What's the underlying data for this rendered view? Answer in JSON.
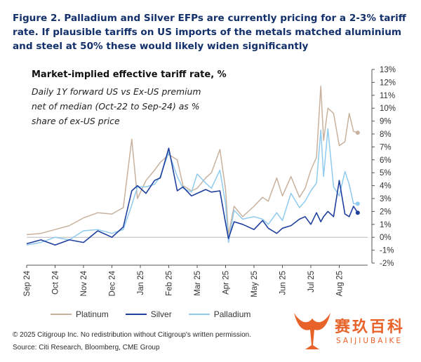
{
  "figure": {
    "title": "Figure 2. Palladium and Silver EFPs are currently pricing for a 2-3% tariff rate. If plausible tariffs on US imports of the metals matched aluminium and steel at 50% these would likely widen significantly"
  },
  "footer": {
    "copyright": "© 2025 Citigroup Inc. No redistribution without Citigroup's written permission.",
    "source": "Source: Citi Research, Bloomberg, CME Group"
  },
  "watermark": {
    "cn": "赛玖百科",
    "en": "SAIJIUBAIKE"
  },
  "colors": {
    "platinum": "#c8b29e",
    "silver": "#1f3f9e",
    "palladium": "#8fcbee",
    "title": "#13306a",
    "logo": "#e8632a"
  },
  "chart_data": {
    "type": "line",
    "title": "Market-implied effective tariff rate, %",
    "subtitle": "Daily 1Y forward US vs Ex-US premium net of median (Oct-22 to Sep-24) as % share of ex-US price",
    "ylim": [
      -2,
      13
    ],
    "y_ticks": [
      "-2%",
      "-1%",
      "0%",
      "1%",
      "2%",
      "3%",
      "4%",
      "5%",
      "6%",
      "7%",
      "8%",
      "9%",
      "10%",
      "11%",
      "12%",
      "13%"
    ],
    "x_ticks": [
      "Sep 24",
      "Oct 24",
      "Nov 24",
      "Dec 24",
      "Jan 25",
      "Feb 25",
      "Mar 25",
      "Apr 25",
      "May 25",
      "Jun 25",
      "Jul 25",
      "Aug 25"
    ],
    "grid": false,
    "legend_position": "bottom",
    "series": [
      {
        "name": "Platinum",
        "points": [
          [
            0,
            0.2
          ],
          [
            0.5,
            0.3
          ],
          [
            1,
            0.6
          ],
          [
            1.5,
            0.9
          ],
          [
            2,
            1.5
          ],
          [
            2.5,
            1.9
          ],
          [
            3,
            1.8
          ],
          [
            3.4,
            2.3
          ],
          [
            3.7,
            7.6
          ],
          [
            3.9,
            3.0
          ],
          [
            4.2,
            4.4
          ],
          [
            4.5,
            5.2
          ],
          [
            4.7,
            5.8
          ],
          [
            5,
            6.4
          ],
          [
            5.3,
            6.0
          ],
          [
            5.5,
            4.0
          ],
          [
            5.8,
            3.6
          ],
          [
            6,
            3.8
          ],
          [
            6.3,
            4.6
          ],
          [
            6.5,
            5.0
          ],
          [
            6.8,
            6.8
          ],
          [
            7,
            3.7
          ],
          [
            7.1,
            0.2
          ],
          [
            7.3,
            2.4
          ],
          [
            7.6,
            1.6
          ],
          [
            8,
            2.4
          ],
          [
            8.3,
            3.1
          ],
          [
            8.5,
            2.8
          ],
          [
            8.8,
            4.6
          ],
          [
            9,
            3.2
          ],
          [
            9.3,
            4.7
          ],
          [
            9.6,
            3.1
          ],
          [
            9.8,
            3.8
          ],
          [
            10,
            5.2
          ],
          [
            10.2,
            6.2
          ],
          [
            10.35,
            11.7
          ],
          [
            10.45,
            7.5
          ],
          [
            10.6,
            10.0
          ],
          [
            10.8,
            9.6
          ],
          [
            11,
            7.1
          ],
          [
            11.2,
            7.4
          ],
          [
            11.35,
            9.6
          ],
          [
            11.5,
            8.2
          ],
          [
            11.65,
            8.1
          ]
        ]
      },
      {
        "name": "Silver",
        "points": [
          [
            0,
            -0.5
          ],
          [
            0.5,
            -0.2
          ],
          [
            1,
            -0.6
          ],
          [
            1.5,
            -0.2
          ],
          [
            2,
            -0.4
          ],
          [
            2.5,
            0.5
          ],
          [
            3,
            0.0
          ],
          [
            3.4,
            0.8
          ],
          [
            3.7,
            3.6
          ],
          [
            3.9,
            4.0
          ],
          [
            4.2,
            3.4
          ],
          [
            4.5,
            4.4
          ],
          [
            4.7,
            4.6
          ],
          [
            5,
            6.9
          ],
          [
            5.3,
            3.6
          ],
          [
            5.5,
            3.9
          ],
          [
            5.8,
            3.2
          ],
          [
            6,
            3.4
          ],
          [
            6.3,
            3.7
          ],
          [
            6.5,
            3.5
          ],
          [
            6.8,
            3.6
          ],
          [
            7,
            1.1
          ],
          [
            7.1,
            -0.1
          ],
          [
            7.3,
            1.2
          ],
          [
            7.6,
            1.0
          ],
          [
            8,
            0.6
          ],
          [
            8.3,
            1.3
          ],
          [
            8.5,
            0.7
          ],
          [
            8.8,
            0.3
          ],
          [
            9,
            0.7
          ],
          [
            9.3,
            0.9
          ],
          [
            9.6,
            1.4
          ],
          [
            9.8,
            1.6
          ],
          [
            10,
            1.0
          ],
          [
            10.2,
            1.9
          ],
          [
            10.35,
            1.2
          ],
          [
            10.45,
            1.6
          ],
          [
            10.6,
            2.0
          ],
          [
            10.8,
            1.6
          ],
          [
            11,
            4.4
          ],
          [
            11.2,
            1.8
          ],
          [
            11.35,
            1.6
          ],
          [
            11.5,
            2.4
          ],
          [
            11.65,
            1.9
          ]
        ]
      },
      {
        "name": "Palladium",
        "points": [
          [
            0,
            -0.6
          ],
          [
            0.5,
            -0.4
          ],
          [
            1,
            0.0
          ],
          [
            1.5,
            -0.2
          ],
          [
            2,
            0.5
          ],
          [
            2.5,
            0.6
          ],
          [
            3,
            0.3
          ],
          [
            3.4,
            0.6
          ],
          [
            3.7,
            2.5
          ],
          [
            3.9,
            3.9
          ],
          [
            4.2,
            3.9
          ],
          [
            4.5,
            4.1
          ],
          [
            4.7,
            4.7
          ],
          [
            5,
            6.6
          ],
          [
            5.3,
            4.7
          ],
          [
            5.5,
            3.8
          ],
          [
            5.8,
            3.5
          ],
          [
            6,
            4.9
          ],
          [
            6.3,
            4.2
          ],
          [
            6.5,
            3.8
          ],
          [
            6.8,
            5.2
          ],
          [
            7,
            2.6
          ],
          [
            7.1,
            -0.4
          ],
          [
            7.3,
            2.1
          ],
          [
            7.6,
            1.4
          ],
          [
            8,
            1.6
          ],
          [
            8.3,
            1.4
          ],
          [
            8.5,
            1.0
          ],
          [
            8.8,
            1.9
          ],
          [
            9,
            1.3
          ],
          [
            9.3,
            3.4
          ],
          [
            9.6,
            2.3
          ],
          [
            9.8,
            2.8
          ],
          [
            10,
            3.6
          ],
          [
            10.2,
            4.2
          ],
          [
            10.35,
            8.3
          ],
          [
            10.45,
            4.7
          ],
          [
            10.6,
            8.4
          ],
          [
            10.8,
            3.9
          ],
          [
            11,
            3.2
          ],
          [
            11.2,
            5.1
          ],
          [
            11.35,
            4.1
          ],
          [
            11.5,
            2.6
          ],
          [
            11.65,
            2.6
          ]
        ]
      }
    ]
  }
}
